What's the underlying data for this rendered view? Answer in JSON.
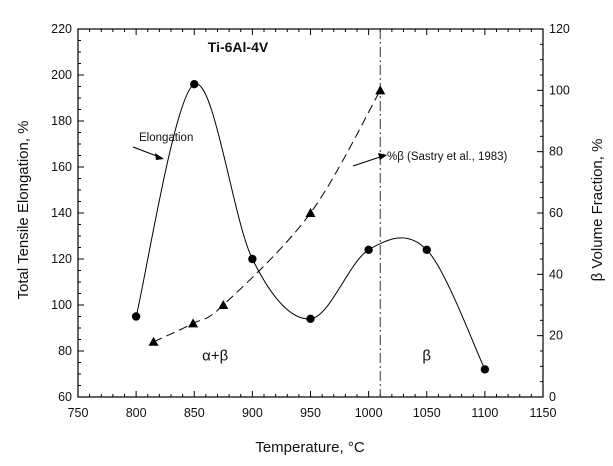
{
  "chart_data": {
    "type": "line",
    "title": "Ti-6Al-4V",
    "xlabel": "Temperature, °C",
    "ylabel": "Total Tensile Elongation, %",
    "y2label": "β Volume Fraction, %",
    "xlim": [
      750,
      1150
    ],
    "ylim": [
      60,
      220
    ],
    "y2lim": [
      0,
      120
    ],
    "xticks": [
      750,
      800,
      850,
      900,
      950,
      1000,
      1050,
      1100,
      1150
    ],
    "yticks": [
      60,
      80,
      100,
      120,
      140,
      160,
      180,
      200,
      220
    ],
    "y2ticks": [
      0,
      20,
      40,
      60,
      80,
      100,
      120
    ],
    "grid": false,
    "series": [
      {
        "name": "Elongation",
        "axis": "left",
        "marker": "circle",
        "line": "solid",
        "x": [
          800,
          850,
          900,
          950,
          1000,
          1050,
          1100
        ],
        "y": [
          95,
          196,
          120,
          94,
          124,
          124,
          72
        ]
      },
      {
        "name": "%β (Sastry et al., 1983)",
        "axis": "right",
        "marker": "triangle",
        "line": "dashed",
        "x": [
          815,
          849,
          875,
          950,
          1010
        ],
        "y": [
          18,
          24,
          30,
          60,
          100
        ]
      }
    ],
    "vertical_line": {
      "x": 1010,
      "style": "dash-dot"
    },
    "annotations": [
      {
        "text": "α+β",
        "x": 868,
        "y": 78
      },
      {
        "text": "β",
        "x": 1050,
        "y": 78
      }
    ]
  }
}
